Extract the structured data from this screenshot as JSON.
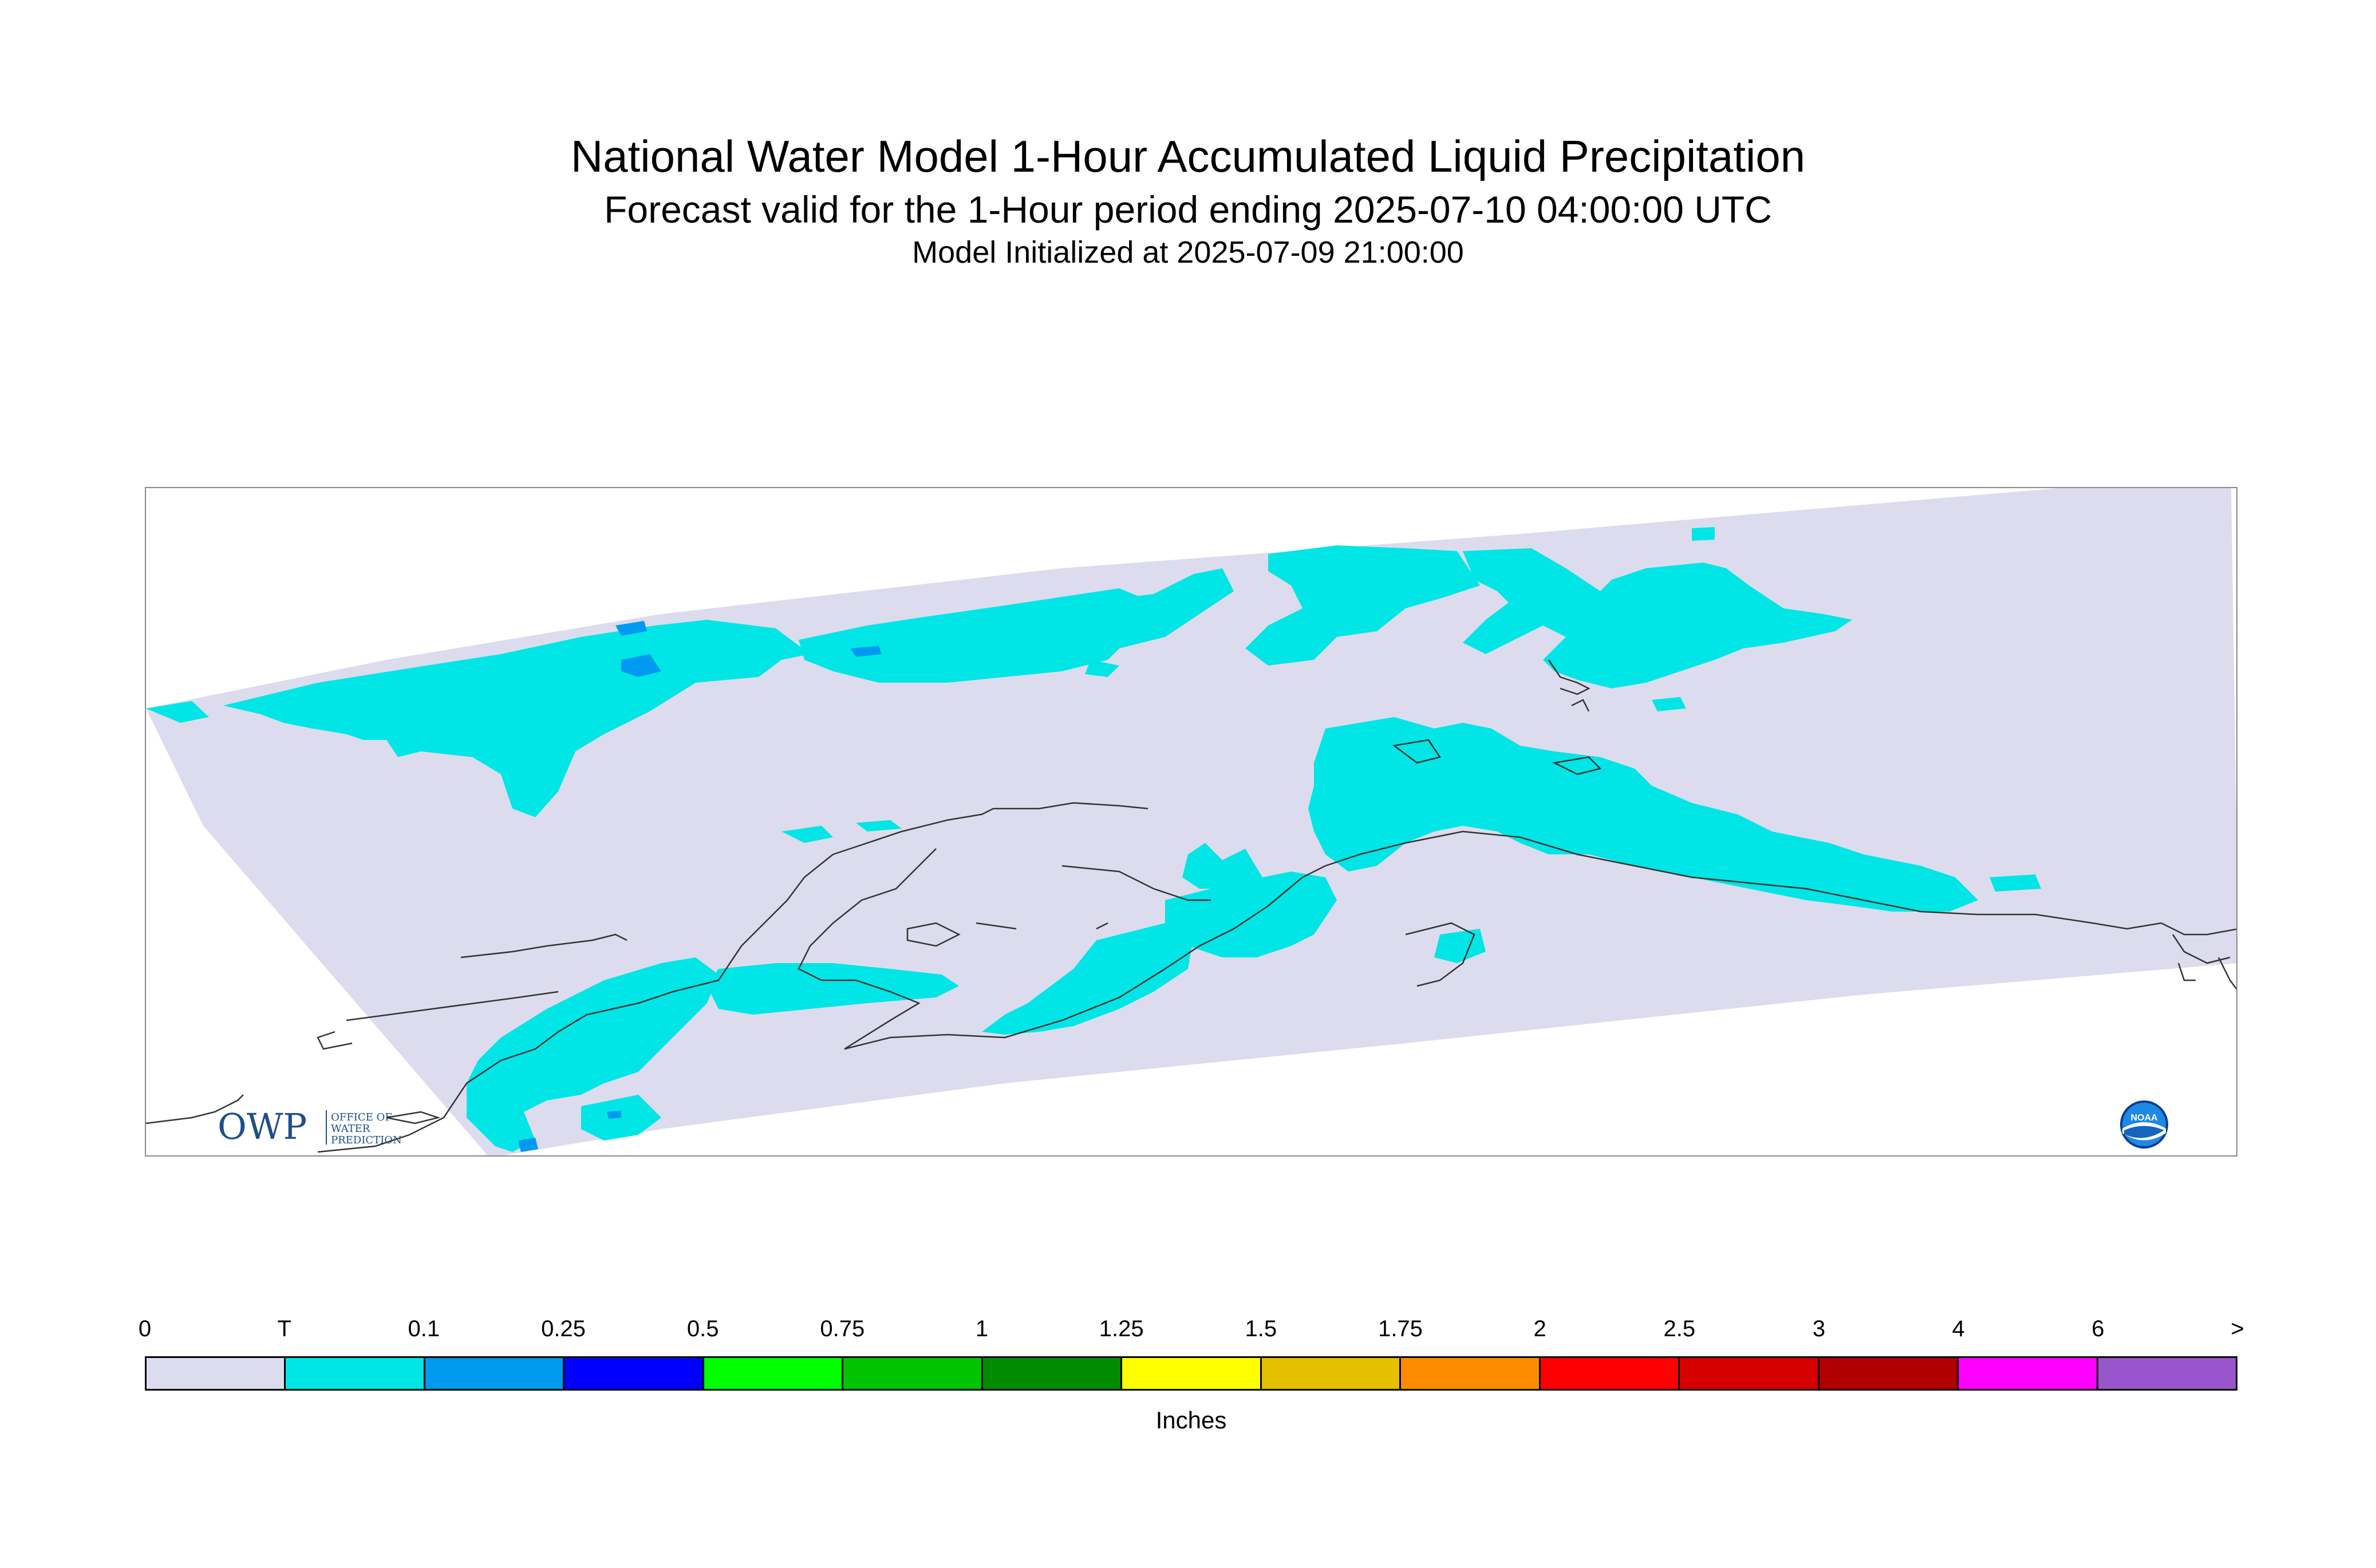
{
  "header": {
    "title": "National Water Model 1-Hour Accumulated Liquid Precipitation",
    "subtitle": "Forecast valid for the 1-Hour period ending 2025-07-10 04:00:00 UTC",
    "init": "Model Initialized at 2025-07-09 21:00:00"
  },
  "map": {
    "background_color": "#dcdcee",
    "precip_color": "#00e5e5",
    "moderate_color": "#0099f0",
    "coastline_color": "#333333"
  },
  "logos": {
    "owp": {
      "letters": "OWP",
      "line1": "OFFICE OF",
      "line2": "WATER",
      "line3": "PREDICTION"
    },
    "noaa": {
      "letters": "NOAA"
    }
  },
  "legend": {
    "labels": [
      "0",
      "T",
      "0.1",
      "0.25",
      "0.5",
      "0.75",
      "1",
      "1.25",
      "1.5",
      "1.75",
      "2",
      "2.5",
      "3",
      "4",
      "6",
      ">"
    ],
    "colors": [
      "#dcdcee",
      "#00e5e5",
      "#0099f0",
      "#0000ff",
      "#00ff00",
      "#00c400",
      "#008c00",
      "#ffff00",
      "#e5c000",
      "#ff8c00",
      "#ff0000",
      "#d60000",
      "#b00000",
      "#ff00ff",
      "#9955cc"
    ],
    "units": "Inches"
  }
}
